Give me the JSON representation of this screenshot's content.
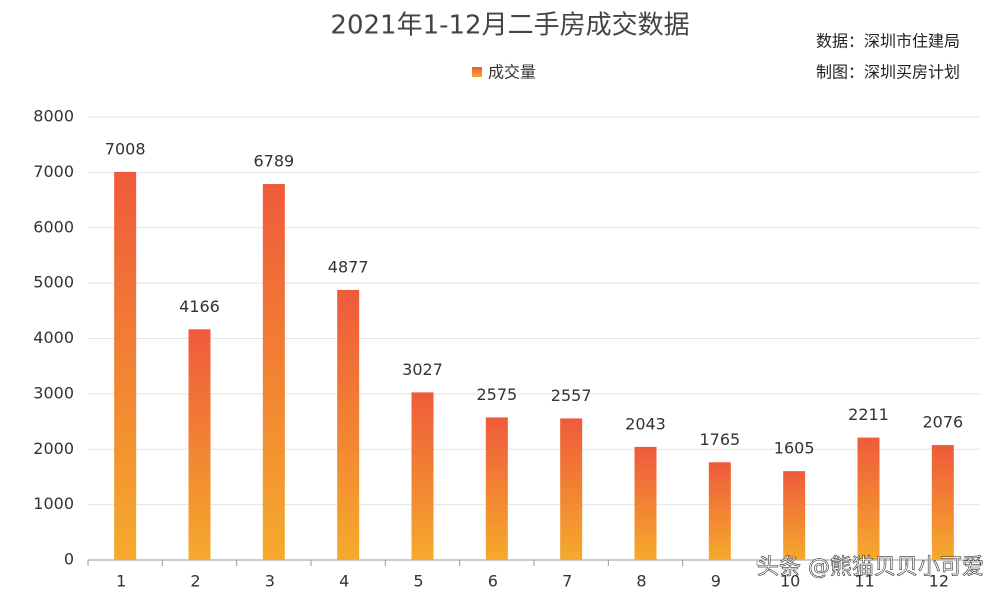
{
  "chart_data": {
    "type": "bar",
    "title": "2021年1-12月二手房成交数据",
    "annotations": [
      "数据：深圳市住建局",
      "制图：深圳买房计划"
    ],
    "watermark": "头条 @熊猫贝贝小可爱",
    "categories": [
      "1",
      "2",
      "3",
      "4",
      "5",
      "6",
      "7",
      "8",
      "9",
      "10",
      "11",
      "12"
    ],
    "series": [
      {
        "name": "成交量",
        "color": [
          "#ef5a3b",
          "#f5aa2c"
        ],
        "values": [
          7008,
          4166,
          6789,
          4877,
          3027,
          2575,
          2557,
          2043,
          1765,
          1605,
          2211,
          2076
        ]
      }
    ],
    "ylim": [
      0,
      8000
    ],
    "yticks": [
      0,
      1000,
      2000,
      3000,
      4000,
      5000,
      6000,
      7000,
      8000
    ],
    "grid": true
  }
}
